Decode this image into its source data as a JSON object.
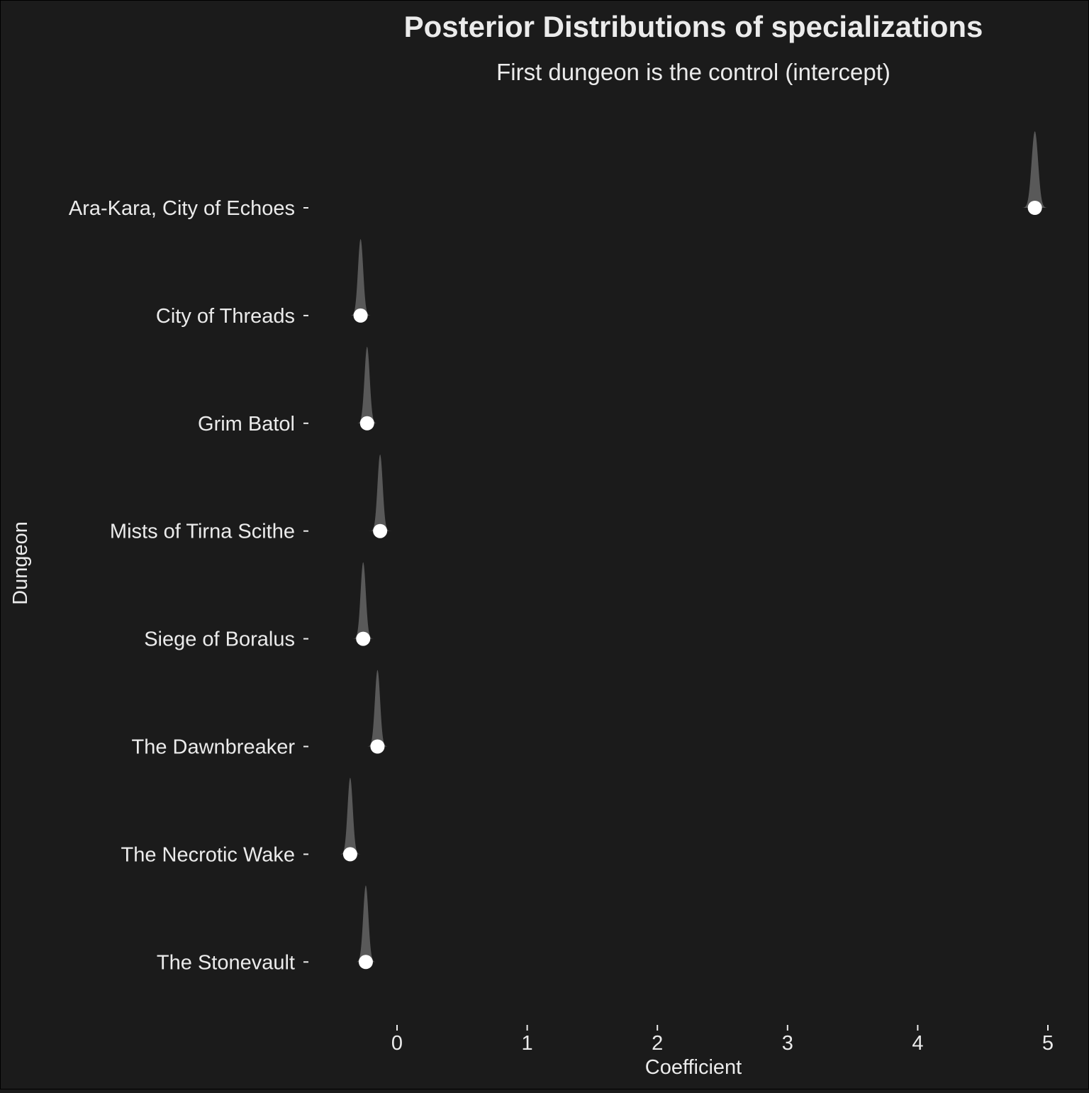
{
  "colors": {
    "background": "#1b1b1b",
    "text": "#ebebeb",
    "density_fill": "#595959",
    "point": "#ffffff"
  },
  "chart_data": {
    "type": "ridgeline-density-with-points",
    "title": "Posterior Distributions of specializations",
    "subtitle": "First dungeon is the control (intercept)",
    "xlabel": "Coefficient",
    "ylabel": "Dungeon",
    "xlim": [
      -0.65,
      5.2
    ],
    "x_ticks": [
      0,
      1,
      2,
      3,
      4,
      5
    ],
    "grid": false,
    "legend": "none",
    "categories": [
      "Ara-Kara, City of Echoes",
      "City of Threads",
      "Grim Batol",
      "Mists of Tirna Scithe",
      "Siege of Boralus",
      "The Dawnbreaker",
      "The Necrotic Wake",
      "The Stonevault"
    ],
    "point_estimates": [
      4.9,
      -0.28,
      -0.23,
      -0.13,
      -0.26,
      -0.15,
      -0.36,
      -0.24
    ],
    "density_sd": [
      0.025,
      0.02,
      0.02,
      0.02,
      0.02,
      0.02,
      0.02,
      0.02
    ]
  }
}
